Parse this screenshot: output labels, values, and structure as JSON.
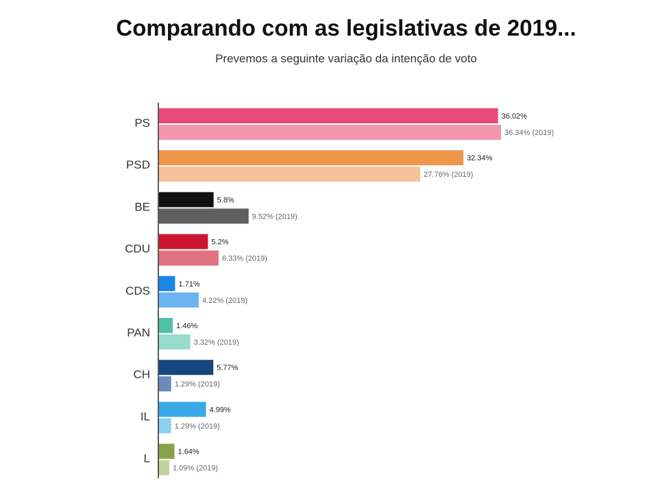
{
  "header": {
    "title": "Comparando com as legislativas de 2019...",
    "subtitle": "Prevemos a seguinte variação da intenção de voto"
  },
  "chart_data": {
    "type": "bar",
    "orientation": "horizontal",
    "categories": [
      "PS",
      "PSD",
      "BE",
      "CDU",
      "CDS",
      "PAN",
      "CH",
      "IL",
      "L"
    ],
    "series": [
      {
        "values": [
          36.02,
          32.34,
          5.8,
          5.2,
          1.71,
          1.46,
          5.77,
          4.99,
          1.64
        ],
        "labels": [
          "36.02%",
          "32.34%",
          "5.8%",
          "5.2%",
          "1.71%",
          "1.46%",
          "5.77%",
          "4.99%",
          "1.64%"
        ],
        "colors": [
          "#e84b78",
          "#ee964c",
          "#111111",
          "#cc1630",
          "#1b86e5",
          "#4fc2a9",
          "#16457f",
          "#3ba9e8",
          "#88a24c"
        ]
      },
      {
        "values": [
          36.34,
          27.76,
          9.52,
          6.33,
          4.22,
          3.32,
          1.29,
          1.29,
          1.09
        ],
        "labels": [
          "36.34% (2019)",
          "27.76% (2019)",
          "9.52% (2019)",
          "6.33% (2019)",
          "4.22% (2019)",
          "3.32% (2019)",
          "1.29% (2019)",
          "1.29% (2019)",
          "1.09% (2019)"
        ],
        "colors": [
          "#f496ad",
          "#f5c299",
          "#5f5f5f",
          "#e17380",
          "#6bb4f1",
          "#97dccd",
          "#6a8bbb",
          "#8bcff3",
          "#c0d39d"
        ]
      }
    ],
    "xlim": [
      0,
      36.34
    ],
    "grid": false
  }
}
